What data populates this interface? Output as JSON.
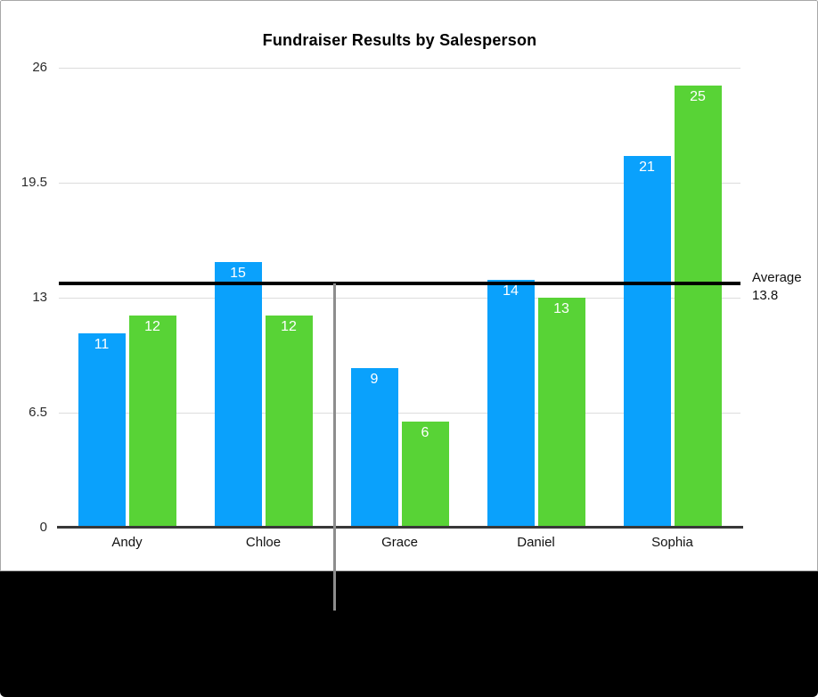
{
  "chart_data": {
    "type": "bar",
    "title": "Fundraiser Results by Salesperson",
    "categories": [
      "Andy",
      "Chloe",
      "Grace",
      "Daniel",
      "Sophia"
    ],
    "series": [
      {
        "color": "#0aa1fc",
        "values": [
          11,
          15,
          9,
          14,
          21
        ]
      },
      {
        "color": "#58d336",
        "values": [
          12,
          12,
          6,
          13,
          25
        ]
      }
    ],
    "ylim": [
      0,
      26
    ],
    "yticks": [
      0,
      6.5,
      13,
      19.5,
      26
    ],
    "ytick_labels": [
      "0",
      "6.5",
      "13",
      "19.5",
      "26"
    ],
    "grid": true,
    "legend": false,
    "value_labels": true,
    "average_line": {
      "value": 13.8,
      "label_line1": "Average",
      "label_line2": "13.8",
      "color": "#000000"
    }
  }
}
